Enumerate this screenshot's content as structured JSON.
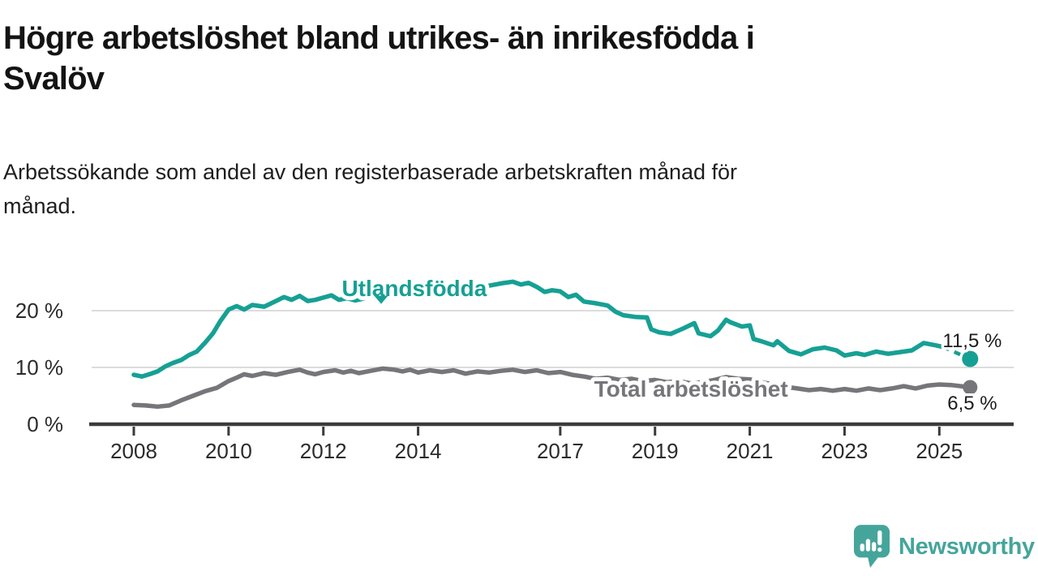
{
  "header": {
    "title_line1": "Högre arbetslöshet bland utrikes- än inrikesfödda i",
    "title_line2": "Svalöv",
    "subtitle_line1": "Arbetssökande som andel av den registerbaserade arbetskraften månad för",
    "subtitle_line2": "månad."
  },
  "branding": {
    "name": "Newsworthy",
    "logo_icon": "speech-bubble-bar-chart-icon",
    "color": "#45a59b"
  },
  "chart_data": {
    "type": "line",
    "unit": "percent of registered labour force",
    "grid": true,
    "x_axis": {
      "min": 2007.05,
      "max": 2025.95,
      "ticks": [
        {
          "v": 2008,
          "label": "2008"
        },
        {
          "v": 2010,
          "label": "2010"
        },
        {
          "v": 2012,
          "label": "2012"
        },
        {
          "v": 2014,
          "label": "2014"
        },
        {
          "v": 2017,
          "label": "2017"
        },
        {
          "v": 2019,
          "label": "2019"
        },
        {
          "v": 2021,
          "label": "2021"
        },
        {
          "v": 2023,
          "label": "2023"
        },
        {
          "v": 2025,
          "label": "2025"
        }
      ]
    },
    "y_axis": {
      "min": 0,
      "max": 27,
      "ticks": [
        {
          "v": 0,
          "label": "0 %"
        },
        {
          "v": 10,
          "label": "10 %"
        },
        {
          "v": 20,
          "label": "20 %"
        }
      ]
    },
    "colors": {
      "grid": "#dcdcdc",
      "axis": "#3b3b3b",
      "tick_text": "#2b2b2b",
      "value_text": "#1c1c1c"
    },
    "series": [
      {
        "name": "Utlandsfödda",
        "color": "#16a094",
        "dashed_from": 2025.08,
        "end_value": 11.5,
        "end_value_label": {
          "text": "11,5 %",
          "x": 2025.07,
          "y": 13.55
        },
        "series_label": {
          "text": "Utlandsfödda",
          "x": 2013.92,
          "y": 22.55,
          "pointer": {
            "x": 2013.22,
            "y": 21.2
          }
        },
        "points": [
          [
            2008.0,
            8.7
          ],
          [
            2008.17,
            8.4
          ],
          [
            2008.33,
            8.8
          ],
          [
            2008.5,
            9.3
          ],
          [
            2008.67,
            10.2
          ],
          [
            2008.83,
            10.8
          ],
          [
            2009.0,
            11.3
          ],
          [
            2009.17,
            12.2
          ],
          [
            2009.33,
            12.8
          ],
          [
            2009.5,
            14.3
          ],
          [
            2009.67,
            16.0
          ],
          [
            2009.83,
            18.2
          ],
          [
            2010.0,
            20.2
          ],
          [
            2010.17,
            20.8
          ],
          [
            2010.33,
            20.2
          ],
          [
            2010.5,
            21.0
          ],
          [
            2010.75,
            20.7
          ],
          [
            2011.0,
            21.7
          ],
          [
            2011.17,
            22.4
          ],
          [
            2011.33,
            21.9
          ],
          [
            2011.5,
            22.6
          ],
          [
            2011.67,
            21.7
          ],
          [
            2011.83,
            21.9
          ],
          [
            2012.0,
            22.3
          ],
          [
            2012.17,
            22.7
          ],
          [
            2012.33,
            21.9
          ],
          [
            2012.5,
            22.2
          ],
          [
            2012.67,
            21.8
          ],
          [
            2012.83,
            22.1
          ],
          [
            2013.0,
            22.6
          ],
          [
            2013.25,
            23.1
          ],
          [
            2013.5,
            22.5
          ],
          [
            2013.75,
            23.0
          ],
          [
            2014.0,
            22.4
          ],
          [
            2014.25,
            23.1
          ],
          [
            2014.5,
            22.6
          ],
          [
            2014.75,
            23.3
          ],
          [
            2015.0,
            23.0
          ],
          [
            2015.25,
            23.6
          ],
          [
            2015.5,
            24.4
          ],
          [
            2015.75,
            24.8
          ],
          [
            2016.0,
            25.1
          ],
          [
            2016.17,
            24.6
          ],
          [
            2016.33,
            24.9
          ],
          [
            2016.5,
            24.2
          ],
          [
            2016.67,
            23.3
          ],
          [
            2016.83,
            23.6
          ],
          [
            2017.0,
            23.4
          ],
          [
            2017.17,
            22.4
          ],
          [
            2017.33,
            22.8
          ],
          [
            2017.5,
            21.6
          ],
          [
            2017.75,
            21.3
          ],
          [
            2018.0,
            20.9
          ],
          [
            2018.17,
            19.8
          ],
          [
            2018.33,
            19.2
          ],
          [
            2018.58,
            18.9
          ],
          [
            2018.83,
            18.8
          ],
          [
            2018.92,
            16.7
          ],
          [
            2019.08,
            16.2
          ],
          [
            2019.33,
            15.9
          ],
          [
            2019.58,
            16.8
          ],
          [
            2019.83,
            17.8
          ],
          [
            2019.92,
            16.0
          ],
          [
            2020.17,
            15.5
          ],
          [
            2020.33,
            16.5
          ],
          [
            2020.5,
            18.4
          ],
          [
            2020.58,
            18.0
          ],
          [
            2020.83,
            17.2
          ],
          [
            2021.0,
            17.4
          ],
          [
            2021.08,
            15.0
          ],
          [
            2021.25,
            14.6
          ],
          [
            2021.5,
            13.9
          ],
          [
            2021.58,
            14.6
          ],
          [
            2021.83,
            12.9
          ],
          [
            2022.08,
            12.3
          ],
          [
            2022.33,
            13.2
          ],
          [
            2022.58,
            13.5
          ],
          [
            2022.83,
            13.0
          ],
          [
            2023.0,
            12.1
          ],
          [
            2023.25,
            12.5
          ],
          [
            2023.42,
            12.2
          ],
          [
            2023.67,
            12.8
          ],
          [
            2023.92,
            12.4
          ],
          [
            2024.17,
            12.7
          ],
          [
            2024.42,
            13.0
          ],
          [
            2024.67,
            14.3
          ],
          [
            2024.92,
            13.9
          ],
          [
            2025.08,
            13.6
          ],
          [
            2025.65,
            11.5
          ]
        ]
      },
      {
        "name": "Total arbetslöshet",
        "color": "#76767a",
        "end_value": 6.5,
        "end_value_label": {
          "text": "6,5 %",
          "x": 2025.17,
          "y": 2.55
        },
        "series_label": {
          "text": "Total arbetslöshet",
          "x": 2019.76,
          "y": 4.85
        },
        "points": [
          [
            2008.0,
            3.4
          ],
          [
            2008.25,
            3.3
          ],
          [
            2008.5,
            3.1
          ],
          [
            2008.75,
            3.3
          ],
          [
            2009.0,
            4.2
          ],
          [
            2009.25,
            5.0
          ],
          [
            2009.5,
            5.8
          ],
          [
            2009.75,
            6.4
          ],
          [
            2010.0,
            7.6
          ],
          [
            2010.17,
            8.2
          ],
          [
            2010.33,
            8.8
          ],
          [
            2010.5,
            8.5
          ],
          [
            2010.75,
            9.0
          ],
          [
            2011.0,
            8.7
          ],
          [
            2011.25,
            9.2
          ],
          [
            2011.5,
            9.6
          ],
          [
            2011.67,
            9.1
          ],
          [
            2011.83,
            8.8
          ],
          [
            2012.0,
            9.2
          ],
          [
            2012.25,
            9.5
          ],
          [
            2012.42,
            9.1
          ],
          [
            2012.58,
            9.4
          ],
          [
            2012.75,
            9.0
          ],
          [
            2013.0,
            9.4
          ],
          [
            2013.25,
            9.8
          ],
          [
            2013.5,
            9.6
          ],
          [
            2013.67,
            9.3
          ],
          [
            2013.83,
            9.6
          ],
          [
            2014.0,
            9.1
          ],
          [
            2014.25,
            9.5
          ],
          [
            2014.5,
            9.2
          ],
          [
            2014.75,
            9.5
          ],
          [
            2015.0,
            8.9
          ],
          [
            2015.25,
            9.3
          ],
          [
            2015.5,
            9.1
          ],
          [
            2015.75,
            9.4
          ],
          [
            2016.0,
            9.6
          ],
          [
            2016.25,
            9.2
          ],
          [
            2016.5,
            9.5
          ],
          [
            2016.75,
            9.0
          ],
          [
            2017.0,
            9.2
          ],
          [
            2017.25,
            8.7
          ],
          [
            2017.5,
            8.4
          ],
          [
            2017.75,
            8.0
          ],
          [
            2018.0,
            8.2
          ],
          [
            2018.25,
            7.8
          ],
          [
            2018.5,
            8.0
          ],
          [
            2018.75,
            7.6
          ],
          [
            2019.0,
            7.8
          ],
          [
            2019.25,
            7.4
          ],
          [
            2019.5,
            7.6
          ],
          [
            2019.75,
            7.2
          ],
          [
            2020.0,
            7.4
          ],
          [
            2020.25,
            7.8
          ],
          [
            2020.5,
            8.3
          ],
          [
            2020.75,
            8.0
          ],
          [
            2021.0,
            7.9
          ],
          [
            2021.25,
            7.4
          ],
          [
            2021.5,
            7.0
          ],
          [
            2021.75,
            6.6
          ],
          [
            2022.0,
            6.3
          ],
          [
            2022.25,
            6.0
          ],
          [
            2022.5,
            6.2
          ],
          [
            2022.75,
            5.9
          ],
          [
            2023.0,
            6.2
          ],
          [
            2023.25,
            5.9
          ],
          [
            2023.5,
            6.3
          ],
          [
            2023.75,
            6.0
          ],
          [
            2024.0,
            6.3
          ],
          [
            2024.25,
            6.7
          ],
          [
            2024.5,
            6.3
          ],
          [
            2024.75,
            6.8
          ],
          [
            2025.0,
            7.0
          ],
          [
            2025.25,
            6.9
          ],
          [
            2025.65,
            6.5
          ]
        ]
      }
    ]
  }
}
